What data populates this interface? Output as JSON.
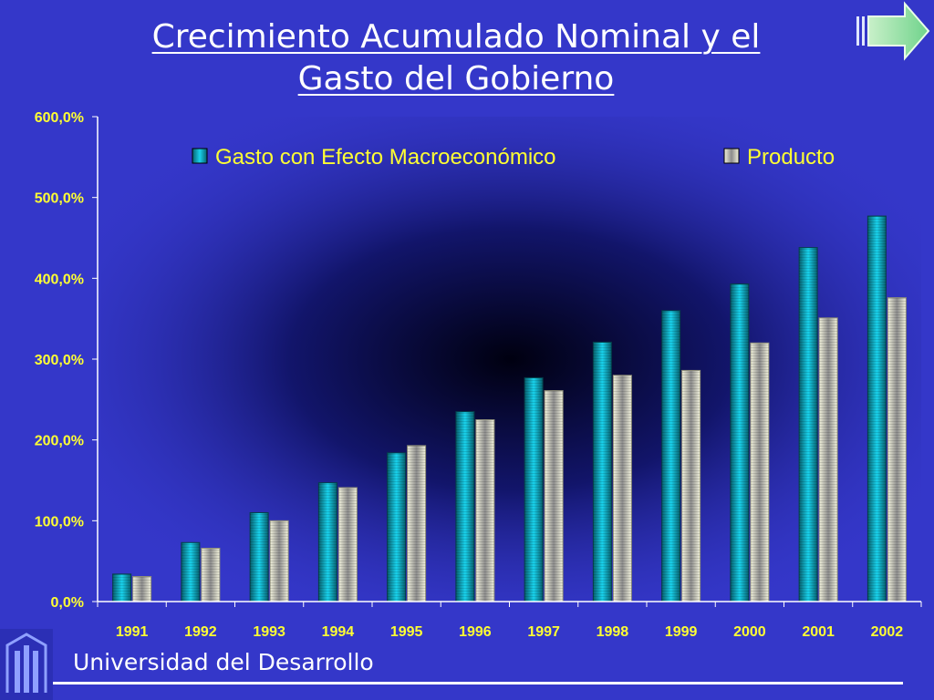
{
  "slide": {
    "title_line1": "Crecimiento Acumulado Nominal y el",
    "title_line2": "Gasto del Gobierno",
    "footer": "Universidad del Desarrollo",
    "nav_icon": "next-arrow-icon",
    "logo_icon": "university-logo-icon"
  },
  "colors": {
    "background": "#3437c9",
    "series_gasto": "#0fa9bf",
    "series_producto": "#d6d6b4",
    "axis_text": "#ffff33"
  },
  "chart_data": {
    "type": "bar",
    "title": "Crecimiento Acumulado Nominal y el Gasto del Gobierno",
    "xlabel": "",
    "ylabel": "",
    "categories": [
      "1991",
      "1992",
      "1993",
      "1994",
      "1995",
      "1996",
      "1997",
      "1998",
      "1999",
      "2000",
      "2001",
      "2002"
    ],
    "series": [
      {
        "name": "Gasto con Efecto Macroeconómico",
        "values": [
          34,
          73,
          110,
          147,
          184,
          235,
          277,
          321,
          360,
          393,
          438,
          477
        ]
      },
      {
        "name": "Producto",
        "values": [
          31,
          66,
          100,
          141,
          193,
          225,
          261,
          280,
          286,
          320,
          351,
          376
        ]
      }
    ],
    "ylim": [
      0,
      600
    ],
    "yticks": [
      "0,0%",
      "100,0%",
      "200,0%",
      "300,0%",
      "400,0%",
      "500,0%",
      "600,0%"
    ],
    "legend_position": "top",
    "grid": false
  }
}
